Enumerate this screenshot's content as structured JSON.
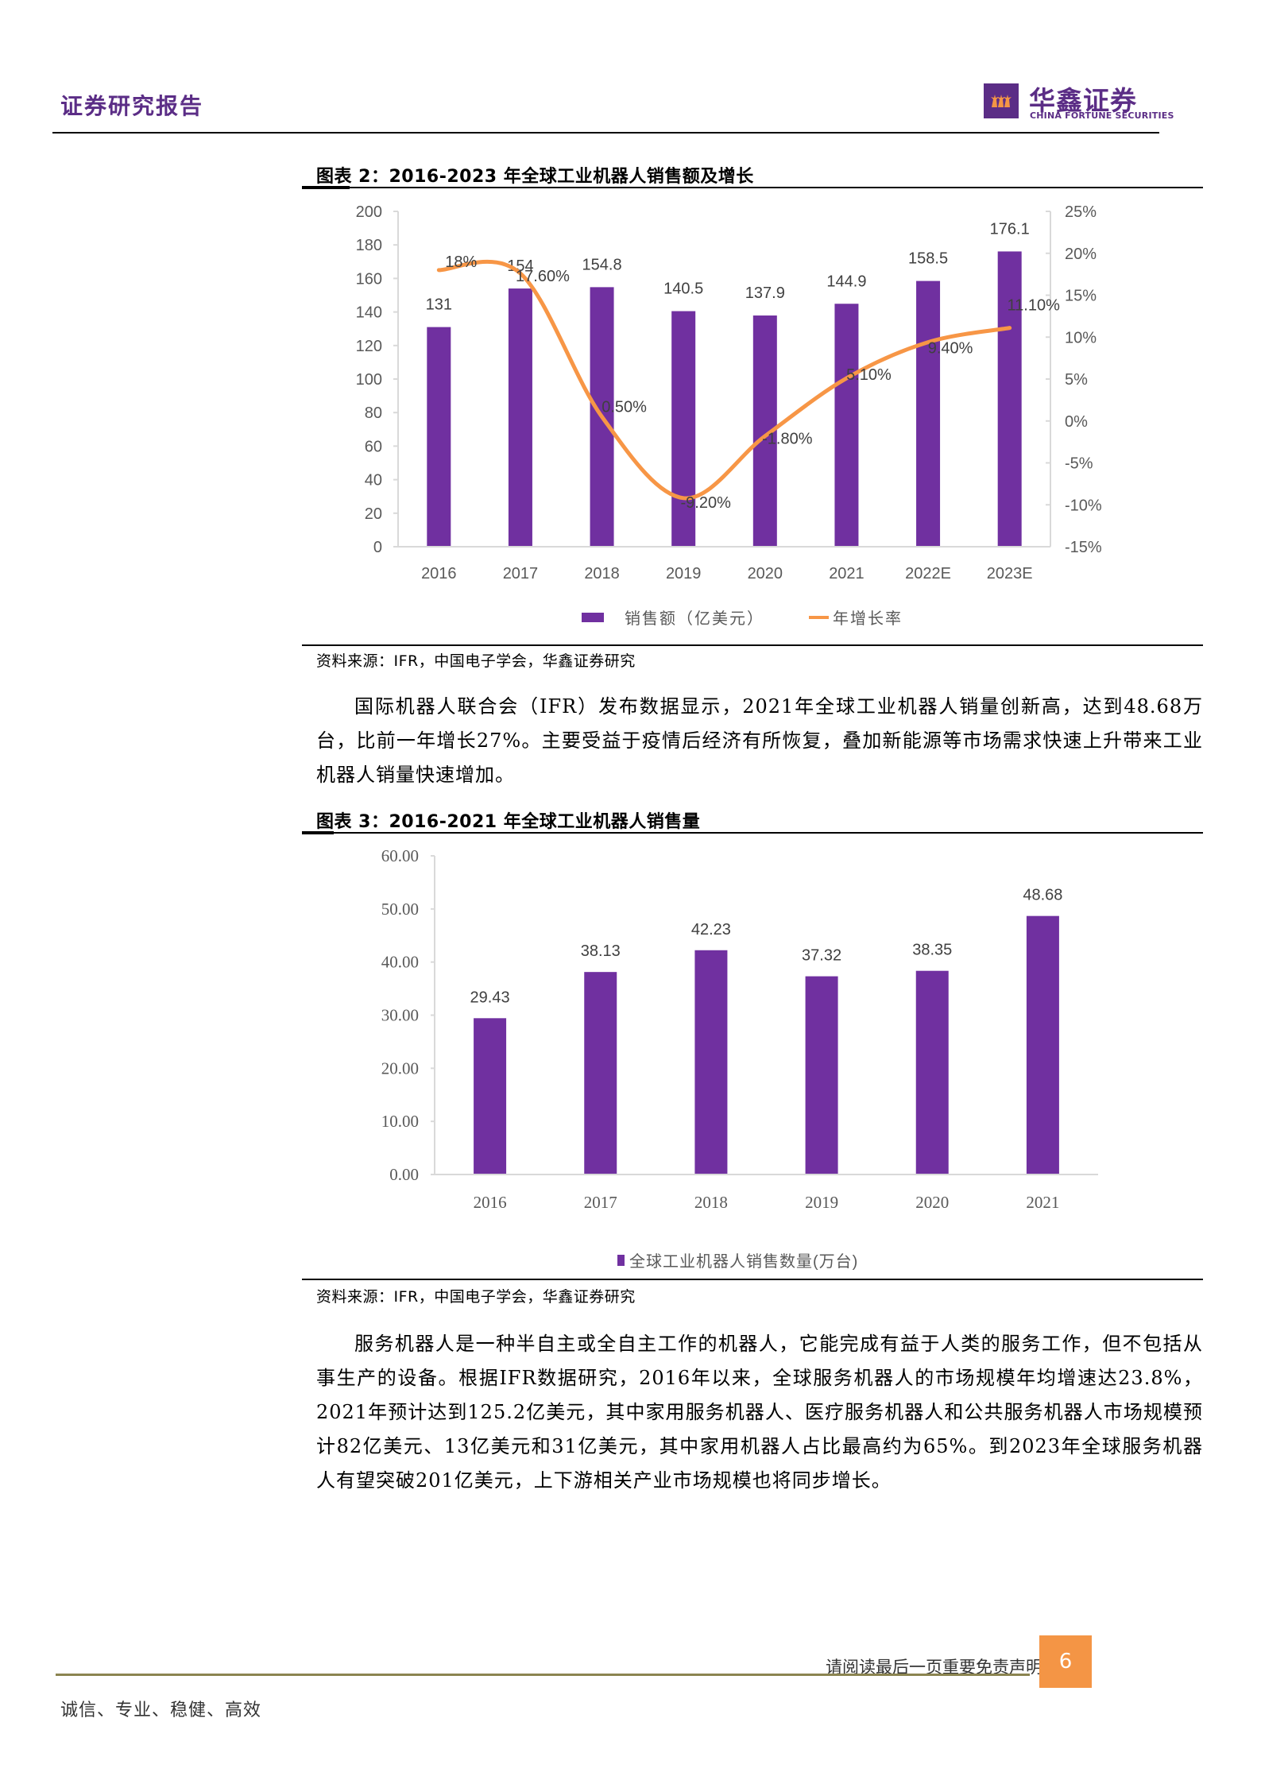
{
  "header": {
    "report_type": "证券研究报告",
    "brand_cn": "华鑫证券",
    "brand_en": "CHINA FORTUNE SECURITIES",
    "colors": {
      "brand": "#5b2d86",
      "logo_mark": "#f49545"
    }
  },
  "figure2": {
    "title": "图表 2：2016-2023 年全球工业机器人销售额及增长",
    "source": "资料来源：IFR，中国电子学会，华鑫证券研究"
  },
  "paragraph1": "国际机器人联合会（IFR）发布数据显示，2021年全球工业机器人销量创新高，达到48.68万台，比前一年增长27%。主要受益于疫情后经济有所恢复，叠加新能源等市场需求快速上升带来工业机器人销量快速增加。",
  "figure3": {
    "title": "图表 3：2016-2021 年全球工业机器人销售量",
    "source": "资料来源：IFR，中国电子学会，华鑫证券研究"
  },
  "paragraph2": "服务机器人是一种半自主或全自主工作的机器人，它能完成有益于人类的服务工作，但不包括从事生产的设备。根据IFR数据研究，2016年以来，全球服务机器人的市场规模年均增速达23.8%，2021年预计达到125.2亿美元，其中家用服务机器人、医疗服务机器人和公共服务机器人市场规模预计82亿美元、13亿美元和31亿美元，其中家用机器人占比最高约为65%。到2023年全球服务机器人有望突破201亿美元，上下游相关产业市场规模也将同步增长。",
  "footer": {
    "disclaimer": "请阅读最后一页重要免责声明",
    "page_number": "6",
    "motto": "诚信、专业、稳健、高效",
    "colors": {
      "rule": "#8b8450",
      "page_box": "#f49545"
    }
  },
  "chart_data": [
    {
      "type": "bar+line",
      "title": "2016-2023 年全球工业机器人销售额及增长",
      "categories": [
        "2016",
        "2017",
        "2018",
        "2019",
        "2020",
        "2021",
        "2022E",
        "2023E"
      ],
      "series": [
        {
          "name": "销售额（亿美元）",
          "type": "bar",
          "axis": "left",
          "color": "#7030a0",
          "values": [
            131,
            154,
            154.8,
            140.5,
            137.9,
            144.9,
            158.5,
            176.1
          ],
          "labels": [
            "131",
            "154",
            "154.8",
            "140.5",
            "137.9",
            "144.9",
            "158.5",
            "176.1"
          ]
        },
        {
          "name": "年增长率",
          "type": "line",
          "axis": "right",
          "color": "#f79646",
          "smooth": true,
          "values": [
            18,
            17.6,
            0.5,
            -9.2,
            -1.8,
            5.1,
            9.4,
            11.1
          ],
          "labels": [
            "18%",
            "17.60%",
            "0.50%",
            "-9.20%",
            "-1.80%",
            "5.10%",
            "9.40%",
            "11.10%"
          ]
        }
      ],
      "left_axis": {
        "min": 0,
        "max": 200,
        "step": 20,
        "ticks": [
          "200",
          "180",
          "160",
          "140",
          "120",
          "100",
          "80",
          "60",
          "40",
          "20",
          "0"
        ]
      },
      "right_axis": {
        "min": -15,
        "max": 25,
        "step": 5,
        "ticks": [
          "25%",
          "20%",
          "15%",
          "10%",
          "5%",
          "0%",
          "-5%",
          "-10%",
          "-15%"
        ]
      },
      "grid": false,
      "legend": {
        "position": "bottom",
        "entries": [
          "销售额（亿美元）",
          "年增长率"
        ]
      }
    },
    {
      "type": "bar",
      "title": "2016-2021 年全球工业机器人销售量",
      "categories": [
        "2016",
        "2017",
        "2018",
        "2019",
        "2020",
        "2021"
      ],
      "series": [
        {
          "name": "全球工业机器人销售数量(万台)",
          "color": "#7030a0",
          "values": [
            29.43,
            38.13,
            42.23,
            37.32,
            38.35,
            48.68
          ],
          "labels": [
            "29.43",
            "38.13",
            "42.23",
            "37.32",
            "38.35",
            "48.68"
          ]
        }
      ],
      "ylim": [
        0,
        60
      ],
      "y_ticks": [
        "60.00",
        "50.00",
        "40.00",
        "30.00",
        "20.00",
        "10.00",
        "0.00"
      ],
      "grid": false,
      "legend": {
        "position": "bottom",
        "entries": [
          "全球工业机器人销售数量(万台)"
        ]
      }
    }
  ]
}
